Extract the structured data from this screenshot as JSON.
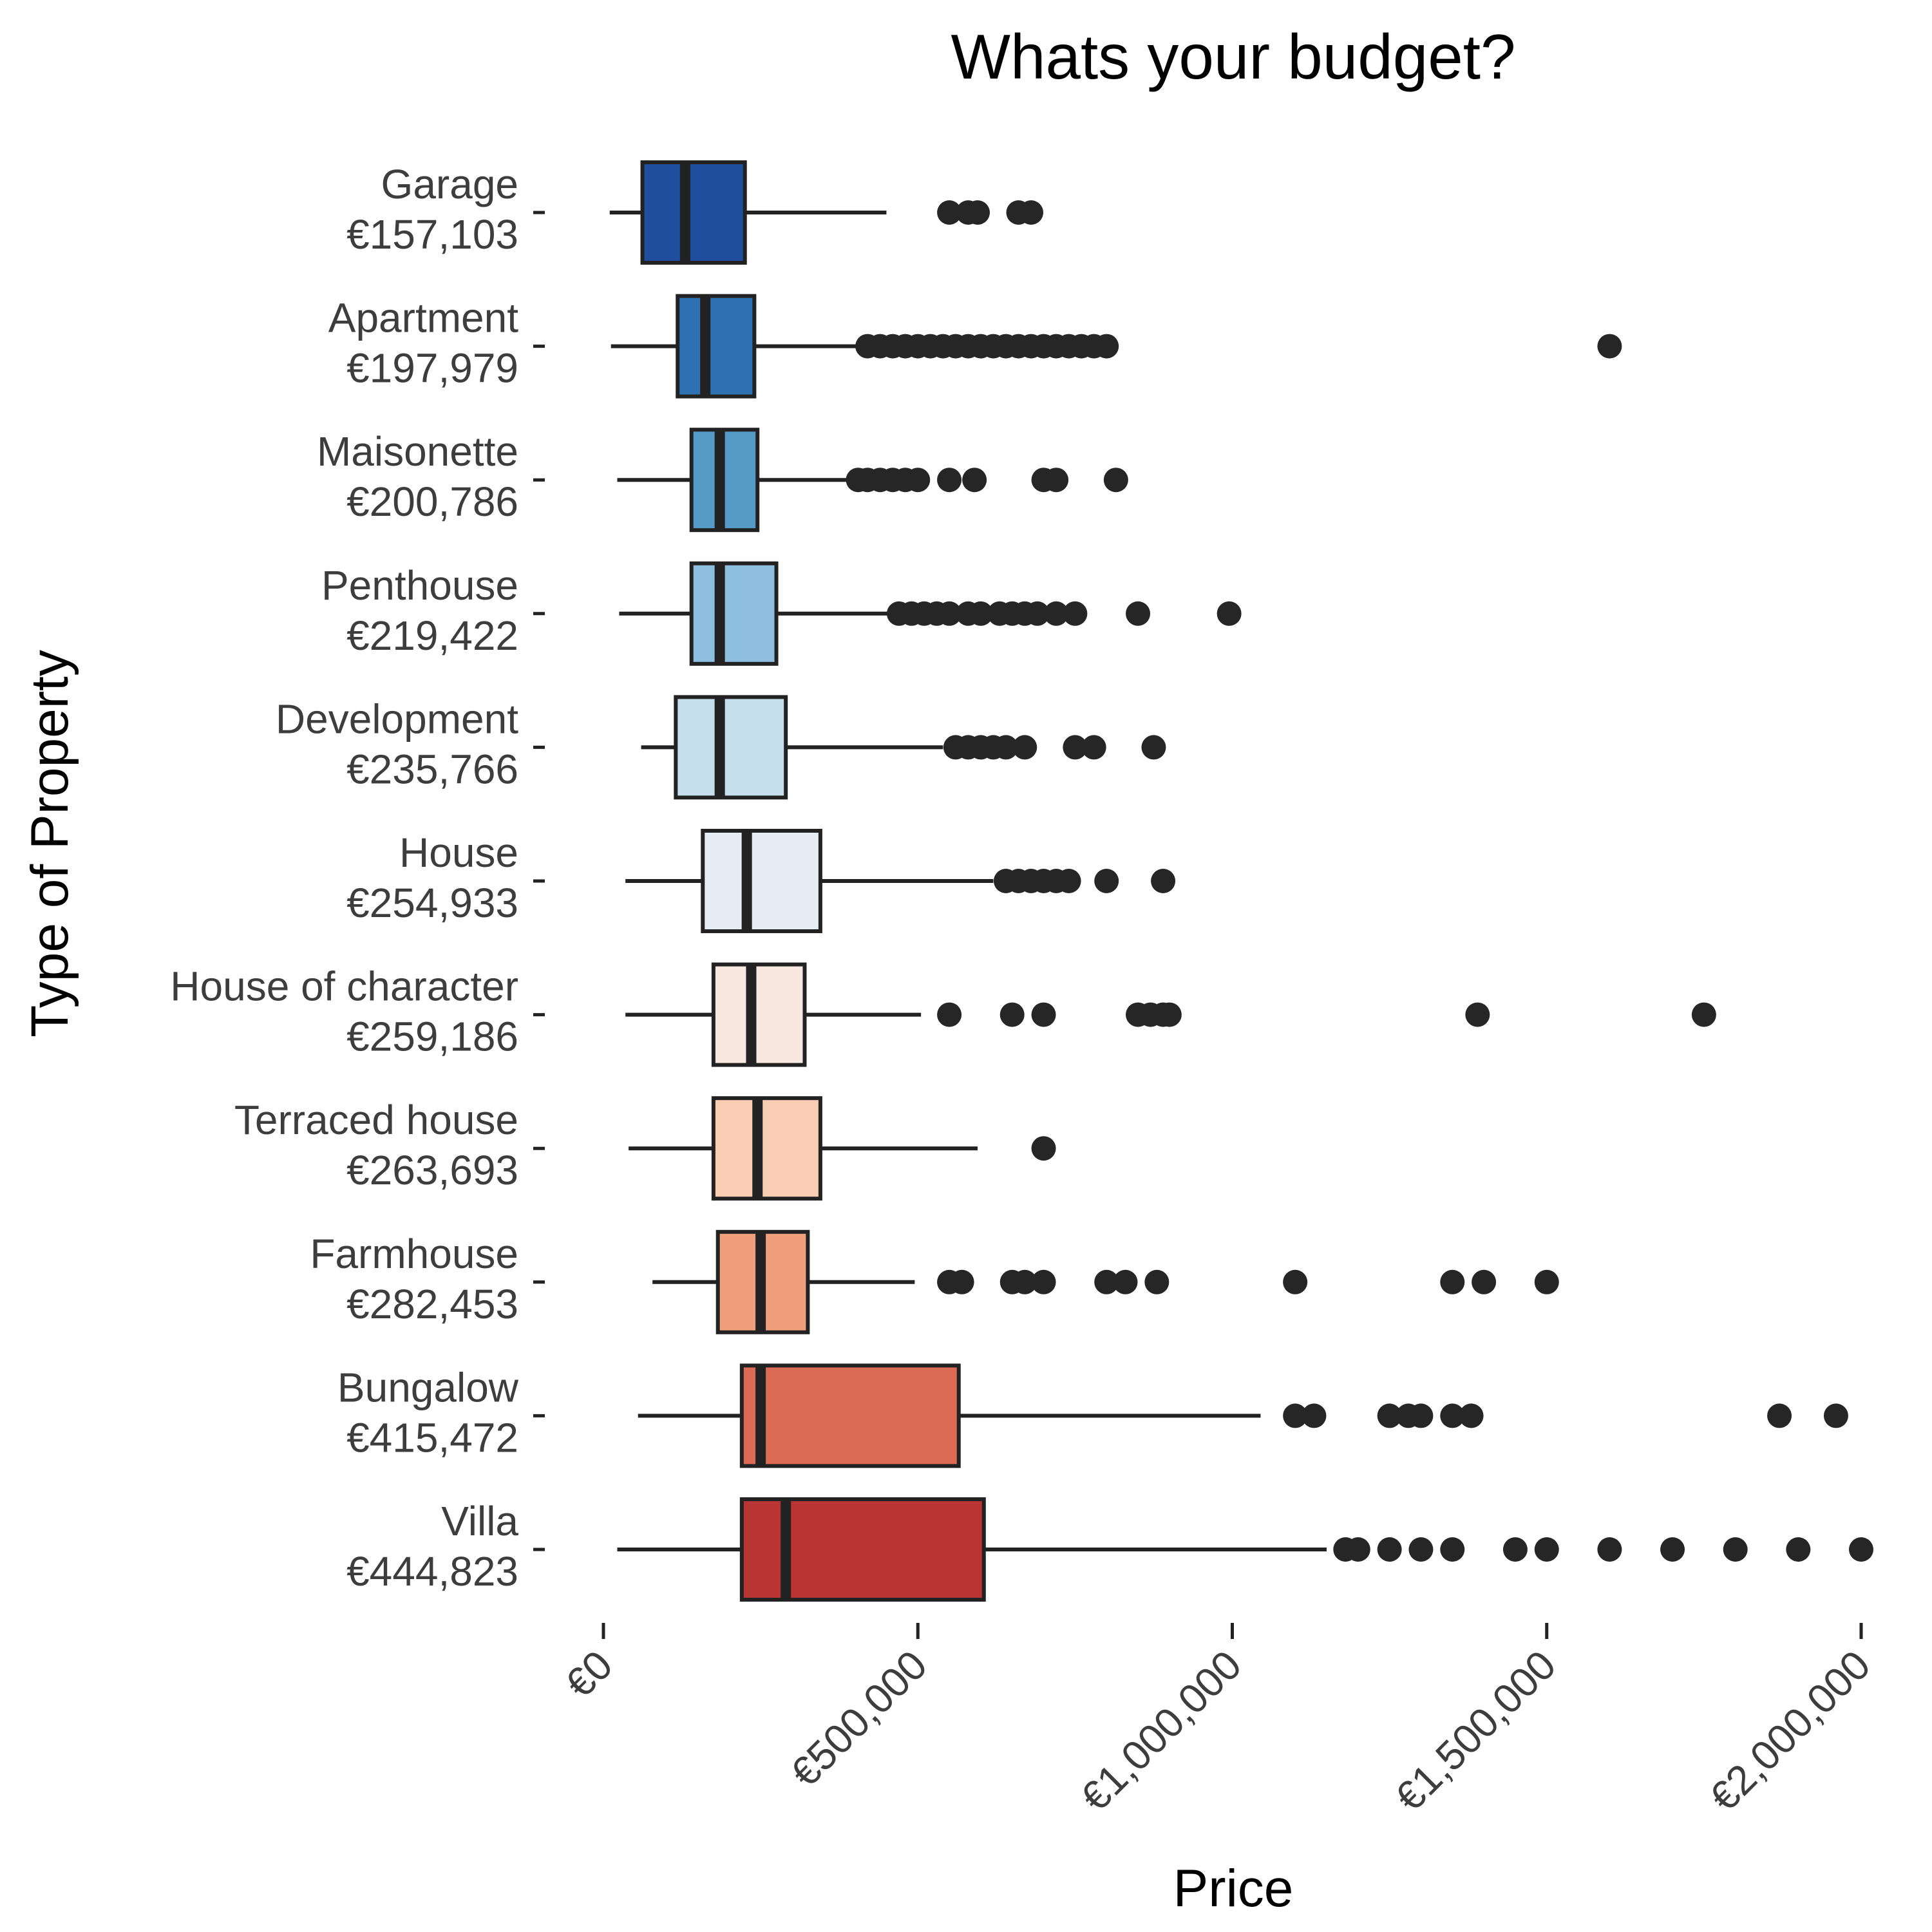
{
  "chart_data": {
    "type": "boxplot",
    "orientation": "horizontal",
    "title": "Whats your budget?",
    "xlabel": "Price",
    "ylabel": "Type of Property",
    "xlim": [
      0,
      2000000
    ],
    "x_ticks": [
      0,
      500000,
      1000000,
      1500000,
      2000000
    ],
    "x_tick_labels": [
      "€0",
      "€500,000",
      "€1,000,000",
      "€1,500,000",
      "€2,000,000"
    ],
    "grid": false,
    "legend": "none",
    "categories": [
      {
        "name": "Garage",
        "mean_label": "€157,103",
        "color": "#1f4e9e",
        "whisker_low": 10000,
        "q1": 62000,
        "median": 130000,
        "q3": 225000,
        "whisker_high": 450000,
        "outliers": [
          550000,
          580000,
          595000,
          660000,
          680000
        ]
      },
      {
        "name": "Apartment",
        "mean_label": "€197,979",
        "color": "#2e72b3",
        "whisker_low": 12000,
        "q1": 118000,
        "median": 162000,
        "q3": 240000,
        "whisker_high": 415000,
        "outliers": [
          420000,
          440000,
          460000,
          480000,
          500000,
          520000,
          540000,
          560000,
          580000,
          600000,
          620000,
          640000,
          660000,
          680000,
          700000,
          720000,
          740000,
          760000,
          780000,
          800000,
          1600000
        ]
      },
      {
        "name": "Maisonette",
        "mean_label": "€200,786",
        "color": "#549cc7",
        "whisker_low": 22000,
        "q1": 140000,
        "median": 185000,
        "q3": 245000,
        "whisker_high": 400000,
        "outliers": [
          405000,
          420000,
          440000,
          460000,
          480000,
          500000,
          550000,
          590000,
          700000,
          720000,
          815000
        ]
      },
      {
        "name": "Penthouse",
        "mean_label": "€219,422",
        "color": "#8fbfde",
        "whisker_low": 25000,
        "q1": 140000,
        "median": 185000,
        "q3": 275000,
        "whisker_high": 465000,
        "outliers": [
          470000,
          490000,
          510000,
          530000,
          550000,
          580000,
          600000,
          630000,
          650000,
          670000,
          690000,
          720000,
          750000,
          850000,
          995000
        ]
      },
      {
        "name": "Development",
        "mean_label": "€235,766",
        "color": "#c5dfed",
        "whisker_low": 60000,
        "q1": 115000,
        "median": 185000,
        "q3": 290000,
        "whisker_high": 540000,
        "outliers": [
          560000,
          580000,
          600000,
          620000,
          640000,
          670000,
          750000,
          780000,
          875000
        ]
      },
      {
        "name": "House",
        "mean_label": "€254,933",
        "color": "#e5ecf3",
        "whisker_low": 35000,
        "q1": 158000,
        "median": 228000,
        "q3": 345000,
        "whisker_high": 620000,
        "outliers": [
          640000,
          660000,
          680000,
          700000,
          720000,
          740000,
          800000,
          890000
        ]
      },
      {
        "name": "House of character",
        "mean_label": "€259,186",
        "color": "#f8e8e0",
        "whisker_low": 35000,
        "q1": 175000,
        "median": 235000,
        "q3": 320000,
        "whisker_high": 505000,
        "outliers": [
          550000,
          650000,
          700000,
          850000,
          870000,
          890000,
          900000,
          1390000,
          1750000
        ]
      },
      {
        "name": "Terraced house",
        "mean_label": "€263,693",
        "color": "#f9cdb3",
        "whisker_low": 40000,
        "q1": 175000,
        "median": 245000,
        "q3": 345000,
        "whisker_high": 595000,
        "outliers": [
          700000
        ]
      },
      {
        "name": "Farmhouse",
        "mean_label": "€282,453",
        "color": "#ef9f7c",
        "whisker_low": 78000,
        "q1": 182000,
        "median": 250000,
        "q3": 325000,
        "whisker_high": 495000,
        "outliers": [
          550000,
          570000,
          650000,
          670000,
          700000,
          800000,
          830000,
          880000,
          1100000,
          1350000,
          1400000,
          1500000
        ]
      },
      {
        "name": "Bungalow",
        "mean_label": "€415,472",
        "color": "#dc6b55",
        "whisker_low": 55000,
        "q1": 220000,
        "median": 250000,
        "q3": 565000,
        "whisker_high": 1045000,
        "outliers": [
          1100000,
          1130000,
          1250000,
          1280000,
          1300000,
          1350000,
          1380000,
          1870000,
          1960000
        ]
      },
      {
        "name": "Villa",
        "mean_label": "€444,823",
        "color": "#b83534",
        "whisker_low": 22000,
        "q1": 220000,
        "median": 290000,
        "q3": 605000,
        "whisker_high": 1150000,
        "outliers": [
          1180000,
          1200000,
          1250000,
          1300000,
          1350000,
          1450000,
          1500000,
          1600000,
          1700000,
          1800000,
          1900000,
          2000000
        ]
      }
    ]
  }
}
